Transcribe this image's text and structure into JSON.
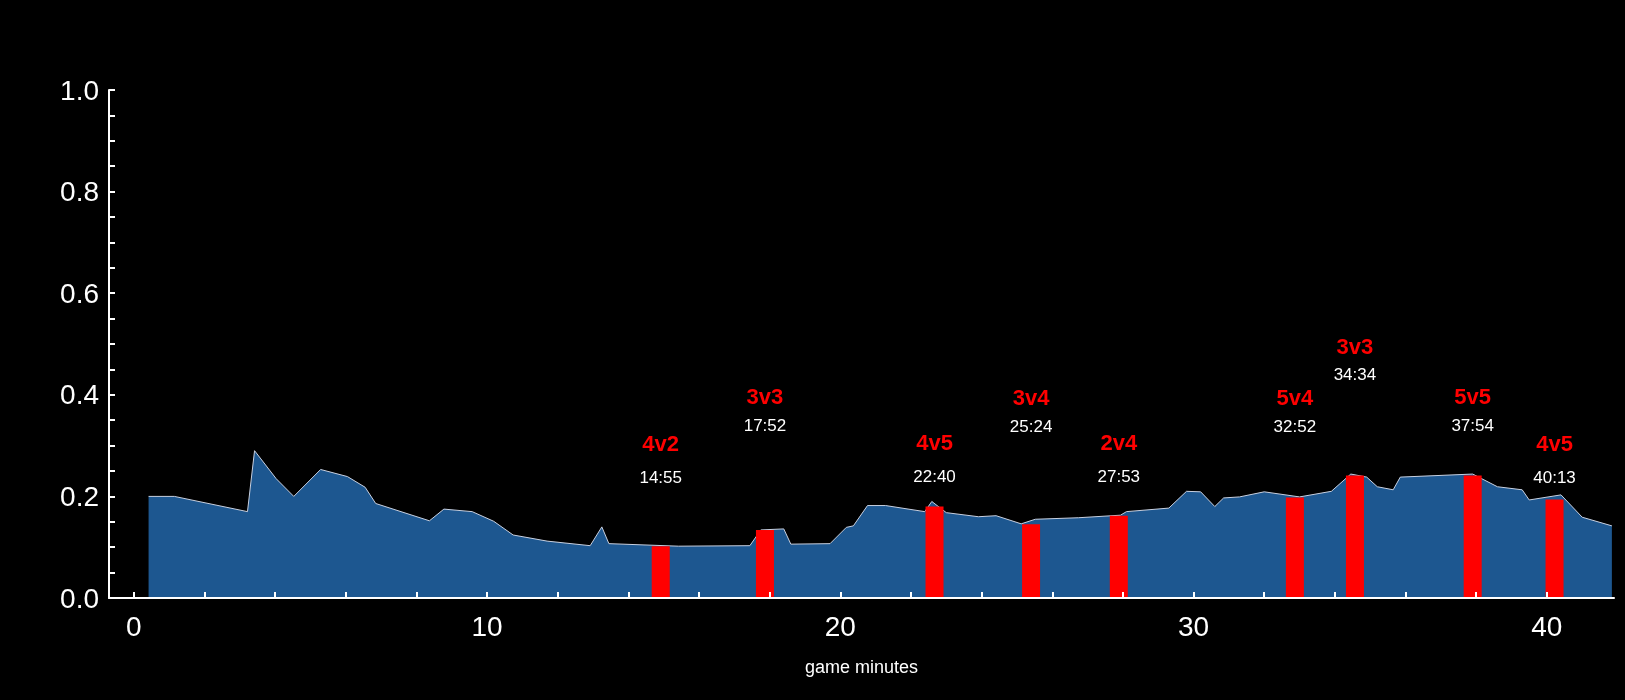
{
  "chart_data": {
    "type": "area",
    "xlabel": "game minutes",
    "xlim": [
      -0.7,
      41.9
    ],
    "ylim": [
      0,
      1
    ],
    "xticks": [
      0,
      {
        "value": 2,
        "label": null
      },
      {
        "value": 4,
        "label": null
      },
      {
        "value": 6,
        "label": null
      },
      {
        "value": 8,
        "label": null
      },
      10,
      {
        "value": 12,
        "label": null
      },
      {
        "value": 14,
        "label": null
      },
      {
        "value": 16,
        "label": null
      },
      {
        "value": 18,
        "label": null
      },
      20,
      {
        "value": 22,
        "label": null
      },
      {
        "value": 24,
        "label": null
      },
      {
        "value": 26,
        "label": null
      },
      {
        "value": 28,
        "label": null
      },
      30,
      {
        "value": 32,
        "label": null
      },
      {
        "value": 34,
        "label": null
      },
      {
        "value": 36,
        "label": null
      },
      {
        "value": 38,
        "label": null
      },
      40
    ],
    "yticks": [
      {
        "value": 0,
        "label": "0.0"
      },
      {
        "value": 0.05,
        "label": null
      },
      {
        "value": 0.1,
        "label": null
      },
      {
        "value": 0.15,
        "label": null
      },
      {
        "value": 0.2,
        "label": "0.2"
      },
      {
        "value": 0.25,
        "label": null
      },
      {
        "value": 0.3,
        "label": null
      },
      {
        "value": 0.35,
        "label": null
      },
      {
        "value": 0.4,
        "label": "0.4"
      },
      {
        "value": 0.45,
        "label": null
      },
      {
        "value": 0.5,
        "label": null
      },
      {
        "value": 0.55,
        "label": null
      },
      {
        "value": 0.6,
        "label": "0.6"
      },
      {
        "value": 0.65,
        "label": null
      },
      {
        "value": 0.7,
        "label": null
      },
      {
        "value": 0.75,
        "label": null
      },
      {
        "value": 0.8,
        "label": "0.8"
      },
      {
        "value": 0.85,
        "label": null
      },
      {
        "value": 0.9,
        "label": null
      },
      {
        "value": 0.95,
        "label": null
      },
      {
        "value": 1,
        "label": "1.0"
      }
    ],
    "grid": false,
    "series": [
      {
        "color": "#1d5790",
        "x": [
          0.42,
          1.15,
          3.22,
          3.42,
          4.03,
          4.53,
          5.29,
          6.05,
          6.55,
          6.85,
          8.37,
          8.78,
          9.58,
          10.19,
          10.74,
          11.7,
          12.92,
          13.25,
          13.45,
          15.42,
          17.44,
          17.75,
          18.4,
          18.6,
          19.71,
          20.17,
          20.37,
          20.77,
          21.28,
          22.39,
          22.59,
          23.0,
          23.91,
          24.41,
          25.12,
          25.52,
          26.74,
          27.93,
          28.1,
          29.3,
          29.8,
          30.2,
          30.6,
          30.85,
          31.3,
          32.0,
          33.0,
          33.9,
          34.45,
          34.9,
          35.2,
          35.65,
          35.85,
          37.9,
          38.6,
          39.3,
          39.5,
          40.4,
          41.0,
          41.84
        ],
        "values": [
          0.2,
          0.2,
          0.17,
          0.29,
          0.235,
          0.2,
          0.253,
          0.239,
          0.218,
          0.186,
          0.152,
          0.175,
          0.17,
          0.151,
          0.124,
          0.112,
          0.103,
          0.14,
          0.107,
          0.102,
          0.103,
          0.134,
          0.136,
          0.106,
          0.107,
          0.139,
          0.142,
          0.182,
          0.182,
          0.17,
          0.19,
          0.168,
          0.16,
          0.162,
          0.146,
          0.155,
          0.158,
          0.163,
          0.17,
          0.177,
          0.21,
          0.209,
          0.18,
          0.197,
          0.199,
          0.209,
          0.199,
          0.21,
          0.244,
          0.238,
          0.219,
          0.213,
          0.238,
          0.244,
          0.219,
          0.213,
          0.193,
          0.203,
          0.159,
          0.142
        ]
      },
      {
        "type": "bar",
        "color": "#ff0000",
        "x": [
          14.917,
          17.867,
          22.667,
          25.4,
          27.883,
          32.867,
          34.567,
          37.9,
          40.217
        ],
        "values": [
          0.102,
          0.134,
          0.18,
          0.145,
          0.162,
          0.198,
          0.241,
          0.241,
          0.194
        ]
      }
    ],
    "annotations": [
      "4v2",
      "14:55",
      "3v3",
      "17:52",
      "4v5",
      "22:40",
      "3v4",
      "25:24",
      "2v4",
      "27:53",
      "5v4",
      "32:52",
      "3v3",
      "34:34",
      "5v5",
      "37:54",
      "4v5",
      "40:13"
    ]
  }
}
